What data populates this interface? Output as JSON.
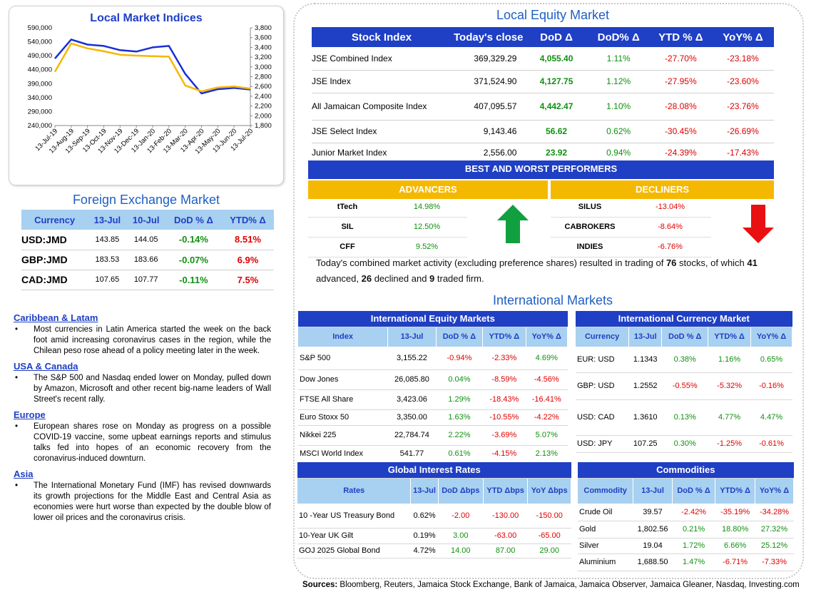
{
  "indices_chart": {
    "title": "Local Market Indices",
    "left_ticks": [
      "590,000",
      "540,000",
      "490,000",
      "440,000",
      "390,000",
      "340,000",
      "290,000",
      "240,000"
    ],
    "right_ticks": [
      "3,800",
      "3,600",
      "3,400",
      "3,200",
      "3,000",
      "2,800",
      "2,600",
      "2,400",
      "2,200",
      "2,000",
      "1,800"
    ],
    "x_ticks": [
      "13-Jul-19",
      "13-Aug-19",
      "13-Sep-19",
      "13-Oct-19",
      "13-Nov-19",
      "13-Dec-19",
      "13-Jan-20",
      "13-Feb-20",
      "13-Mar-20",
      "13-Apr-20",
      "13-May-20",
      "13-Jun-20",
      "13-Jul-20"
    ],
    "colors": {
      "blue": "#1a2ed6",
      "gold": "#f5b800"
    }
  },
  "chart_data": {
    "type": "line",
    "title": "Local Market Indices",
    "x": [
      "13-Jul-19",
      "13-Aug-19",
      "13-Sep-19",
      "13-Oct-19",
      "13-Nov-19",
      "13-Dec-19",
      "13-Jan-20",
      "13-Feb-20",
      "13-Mar-20",
      "13-Apr-20",
      "13-May-20",
      "13-Jun-20",
      "13-Jul-20"
    ],
    "ylim_left": [
      240000,
      590000
    ],
    "ylim_right": [
      1800,
      3800
    ],
    "series": [
      {
        "axis": "left",
        "color": "#1a2ed6",
        "values": [
          480000,
          548000,
          530000,
          525000,
          510000,
          505000,
          520000,
          525000,
          425000,
          355000,
          370000,
          375000,
          369000
        ]
      },
      {
        "axis": "right",
        "color": "#f5b800",
        "values": [
          2900,
          3480,
          3380,
          3320,
          3250,
          3230,
          3220,
          3210,
          2620,
          2500,
          2580,
          2600,
          2556
        ]
      }
    ]
  },
  "fx": {
    "title": "Foreign Exchange Market",
    "headers": [
      "Currency",
      "13-Jul",
      "10-Jul",
      "DoD % Δ",
      "YTD% Δ"
    ],
    "rows": [
      [
        "USD:JMD",
        "143.85",
        "144.05",
        "-0.14%",
        "8.51%"
      ],
      [
        "GBP:JMD",
        "183.53",
        "183.66",
        "-0.07%",
        "6.9%"
      ],
      [
        "CAD:JMD",
        "107.65",
        "107.77",
        "-0.11%",
        "7.5%"
      ]
    ]
  },
  "news": [
    {
      "head": "Caribbean & Latam",
      "text": "Most currencies in Latin America started the week on the back foot amid increasing coronavirus cases in the region, while the Chilean peso rose ahead of a policy meeting later in the week."
    },
    {
      "head": "USA & Canada",
      "text": "The S&P 500 and Nasdaq ended lower on Monday, pulled down by Amazon, Microsoft and other recent big-name leaders of Wall Street's recent rally."
    },
    {
      "head": "Europe",
      "text": "European shares rose on Monday as progress on a possible COVID-19 vaccine, some upbeat earnings reports and stimulus talks fed into hopes of an economic recovery from the coronavirus-induced downturn."
    },
    {
      "head": "Asia",
      "text": "The International Monetary Fund (IMF) has revised downwards its growth projections for the Middle East and Central Asia as economies were hurt worse than expected by the double blow of lower oil prices and the coronavirus crisis."
    }
  ],
  "equity": {
    "title": "Local Equity Market",
    "headers": [
      "Stock Index",
      "Today's close",
      "DoD  Δ",
      "DoD% Δ",
      "YTD % Δ",
      "YoY% Δ"
    ],
    "rows": [
      [
        "JSE Combined Index",
        "369,329.29",
        "4,055.40",
        "1.11%",
        "-27.70%",
        "-23.18%"
      ],
      [
        "JSE Index",
        "371,524.90",
        "4,127.75",
        "1.12%",
        "-27.95%",
        "-23.60%"
      ],
      [
        "All Jamaican Composite Index",
        "407,095.57",
        "4,442.47",
        "1.10%",
        "-28.08%",
        "-23.76%"
      ],
      [
        "JSE Select Index",
        "9,143.46",
        "56.62",
        "0.62%",
        "-30.45%",
        "-26.69%"
      ],
      [
        "Junior Market Index",
        "2,556.00",
        "23.92",
        "0.94%",
        "-24.39%",
        "-17.43%"
      ]
    ]
  },
  "performers": {
    "title": "BEST AND WORST PERFORMERS",
    "adv_label": "ADVANCERS",
    "dec_label": "DECLINERS",
    "advancers": [
      [
        "tTech",
        "14.98%"
      ],
      [
        "SIL",
        "12.50%"
      ],
      [
        "CFF",
        "9.52%"
      ]
    ],
    "decliners": [
      [
        "SILUS",
        "-13.04%"
      ],
      [
        "CABROKERS",
        "-8.64%"
      ],
      [
        "INDIES",
        "-6.76%"
      ]
    ],
    "colors": {
      "up": "#10a040",
      "down": "#e81010"
    }
  },
  "summary": {
    "t1": "Today's combined market activity (excluding preference shares) resulted in trading of ",
    "n1": "76",
    "t2": " stocks, of which ",
    "n2": "41",
    "t3": " advanced, ",
    "n3": "26",
    "t4": " declined and ",
    "n4": "9",
    "t5": " traded firm."
  },
  "intl": {
    "title": "International Markets",
    "equity": {
      "title": "International Equity Markets",
      "headers": [
        "Index",
        "13-Jul",
        "DoD % Δ",
        "YTD% Δ",
        "YoY% Δ"
      ],
      "rows": [
        [
          "S&P 500",
          "3,155.22",
          "-0.94%",
          "-2.33%",
          "4.69%"
        ],
        [
          "Dow Jones",
          "26,085.80",
          "0.04%",
          "-8.59%",
          "-4.56%"
        ],
        [
          "FTSE All Share",
          "3,423.06",
          "1.29%",
          "-18.43%",
          "-16.41%"
        ],
        [
          "Euro Stoxx 50",
          "3,350.00",
          "1.63%",
          "-10.55%",
          "-4.22%"
        ],
        [
          "Nikkei 225",
          "22,784.74",
          "2.22%",
          "-3.69%",
          "5.07%"
        ],
        [
          "MSCI World Index",
          "541.77",
          "0.61%",
          "-4.15%",
          "2.13%"
        ]
      ]
    },
    "currency": {
      "title": "International Currency Market",
      "headers": [
        "Currency",
        "13-Jul",
        "DoD % Δ",
        "YTD% Δ",
        "YoY% Δ"
      ],
      "rows": [
        [
          "EUR: USD",
          "1.1343",
          "0.38%",
          "1.16%",
          "0.65%"
        ],
        [
          "GBP: USD",
          "1.2552",
          "-0.55%",
          "-5.32%",
          "-0.16%"
        ],
        [
          "USD: CAD",
          "1.3610",
          "0.13%",
          "4.77%",
          "4.47%"
        ],
        [
          "USD: JPY",
          "107.25",
          "0.30%",
          "-1.25%",
          "-0.61%"
        ]
      ]
    },
    "rates": {
      "title": "Global Interest Rates",
      "headers": [
        "Rates",
        "13-Jul",
        "DoD Δbps",
        "YTD Δbps",
        "YoY Δbps"
      ],
      "rows": [
        [
          "10 -Year US Treasury Bond",
          "0.62%",
          "-2.00",
          "-130.00",
          "-150.00"
        ],
        [
          "10-Year UK Gilt",
          "0.19%",
          "3.00",
          "-63.00",
          "-65.00"
        ],
        [
          "GOJ 2025 Global Bond",
          "4.72%",
          "14.00",
          "87.00",
          "29.00"
        ]
      ]
    },
    "commod": {
      "title": "Commodities",
      "headers": [
        "Commodity",
        "13-Jul",
        "DoD % Δ",
        "YTD% Δ",
        "YoY% Δ"
      ],
      "rows": [
        [
          "Crude Oil",
          "39.57",
          "-2.42%",
          "-35.19%",
          "-34.28%"
        ],
        [
          "Gold",
          "1,802.56",
          "0.21%",
          "18.80%",
          "27.32%"
        ],
        [
          "Silver",
          "19.04",
          "1.72%",
          "6.66%",
          "25.12%"
        ],
        [
          "Aluminium",
          "1,688.50",
          "1.47%",
          "-6.71%",
          "-7.33%"
        ]
      ]
    }
  },
  "sources": {
    "label": "Sources:",
    "text": " Bloomberg, Reuters, Jamaica Stock Exchange, Bank of Jamaica, Jamaica Observer, Jamaica Gleaner, Nasdaq, Investing.com"
  }
}
